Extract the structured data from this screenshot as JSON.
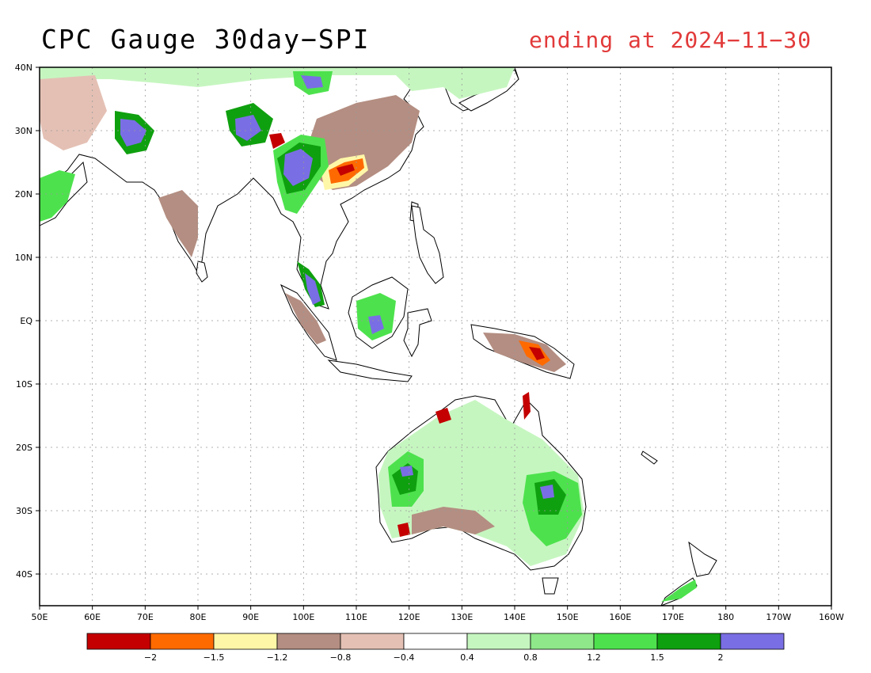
{
  "title": "CPC Gauge 30day−SPI",
  "subtitle": "ending at 2024−11−30",
  "map": {
    "lon_range": [
      50,
      200
    ],
    "lat_range": [
      -45,
      40
    ],
    "lon_ticks": [
      "50E",
      "60E",
      "70E",
      "80E",
      "90E",
      "100E",
      "110E",
      "120E",
      "130E",
      "140E",
      "150E",
      "160E",
      "170E",
      "180",
      "170W",
      "160W"
    ],
    "lat_ticks": [
      "40N",
      "30N",
      "20N",
      "10N",
      "EQ",
      "10S",
      "20S",
      "30S",
      "40S"
    ],
    "grid": true
  },
  "legend": {
    "colors": [
      "#c40000",
      "#ff6a00",
      "#fff7a8",
      "#b48e82",
      "#e4c0b4",
      "#ffffff",
      "#c6f6c0",
      "#8fe889",
      "#4de24d",
      "#0fa00f",
      "#7a6ee4"
    ],
    "labels": [
      "−2",
      "−1.5",
      "−1.2",
      "−0.8",
      "−0.4",
      "0.4",
      "0.8",
      "1.2",
      "1.5",
      "2"
    ]
  }
}
